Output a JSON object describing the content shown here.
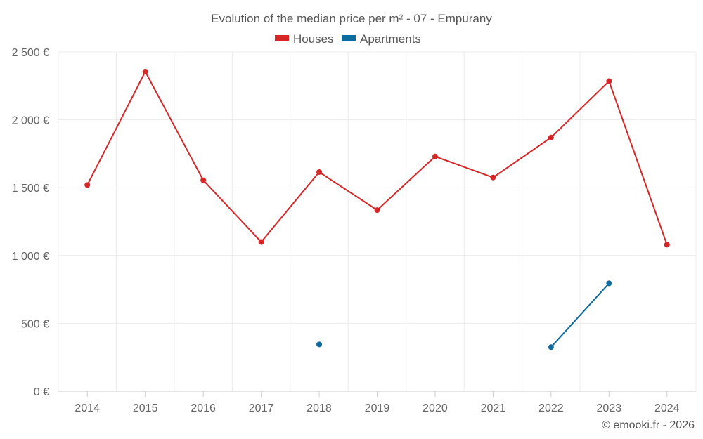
{
  "chart_data": {
    "type": "line",
    "title": "Evolution of the median price per m² - 07 - Empurany",
    "categories": [
      "2014",
      "2015",
      "2016",
      "2017",
      "2018",
      "2019",
      "2020",
      "2021",
      "2022",
      "2023",
      "2024"
    ],
    "ylim": [
      0,
      2500
    ],
    "yticks": [
      0,
      500,
      1000,
      1500,
      2000,
      2500
    ],
    "ytick_labels": [
      "0 €",
      "500 €",
      "1 000 €",
      "1 500 €",
      "2 000 €",
      "2 500 €"
    ],
    "grid": true,
    "legend_position": "top-center",
    "series": [
      {
        "name": "Houses",
        "color": "#d62728",
        "values": [
          1520,
          2355,
          1555,
          1100,
          1615,
          1335,
          1730,
          1575,
          1870,
          2285,
          1080
        ]
      },
      {
        "name": "Apartments",
        "color": "#0d6b9e",
        "values": [
          null,
          null,
          null,
          null,
          345,
          null,
          null,
          null,
          325,
          795,
          null
        ]
      }
    ]
  },
  "credit": "© emooki.fr - 2026"
}
